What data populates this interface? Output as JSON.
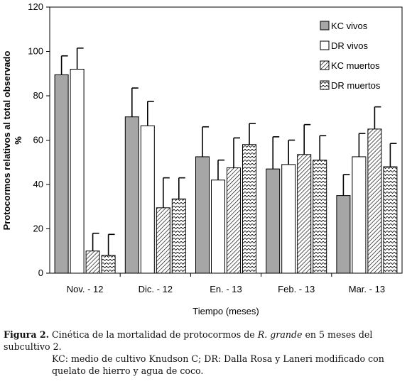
{
  "chart_data": {
    "type": "bar",
    "xlabel": "Tiempo (meses)",
    "ylabel": "Protocormos relativos al total observado",
    "ylabel_unit": "%",
    "ylim": [
      0,
      120
    ],
    "yticks": [
      0,
      20,
      40,
      60,
      80,
      100,
      120
    ],
    "categories": [
      "Nov. - 12",
      "Dic. - 12",
      "En. - 13",
      "Feb. - 13",
      "Mar. - 13"
    ],
    "legend_position": "top-right",
    "grid": false,
    "series": [
      {
        "name": "KC vivos",
        "fill": "gray",
        "values": [
          89.5,
          70.5,
          52.5,
          47,
          35
        ],
        "errors": [
          8.5,
          13,
          13.5,
          14.5,
          9.5
        ]
      },
      {
        "name": "DR vivos",
        "fill": "white",
        "values": [
          92,
          66.5,
          42,
          49,
          52.5
        ],
        "errors": [
          9.5,
          11,
          9,
          11,
          10.5
        ]
      },
      {
        "name": "KC muertos",
        "fill": "hatch-dense",
        "values": [
          10,
          29.5,
          47.5,
          53.5,
          65
        ],
        "errors": [
          8,
          13.5,
          13.5,
          13.5,
          10
        ]
      },
      {
        "name": "DR muertos",
        "fill": "hatch-light",
        "values": [
          8,
          33.5,
          58,
          51,
          48
        ],
        "errors": [
          9.5,
          9.5,
          9.5,
          11,
          10.5
        ]
      }
    ]
  },
  "caption": {
    "label": "Figura 2.",
    "text_before_species": " Cinética de la mortalidad de protocormos de ",
    "species": "R. grande",
    "text_after_species": " en 5 meses del subcultivo 2.",
    "note": "KC: medio de cultivo Knudson C; DR: Dalla Rosa y Laneri modificado con quelato de hierro y agua de coco."
  },
  "colors": {
    "gray": "#a6a6a6",
    "stroke": "#000000"
  }
}
